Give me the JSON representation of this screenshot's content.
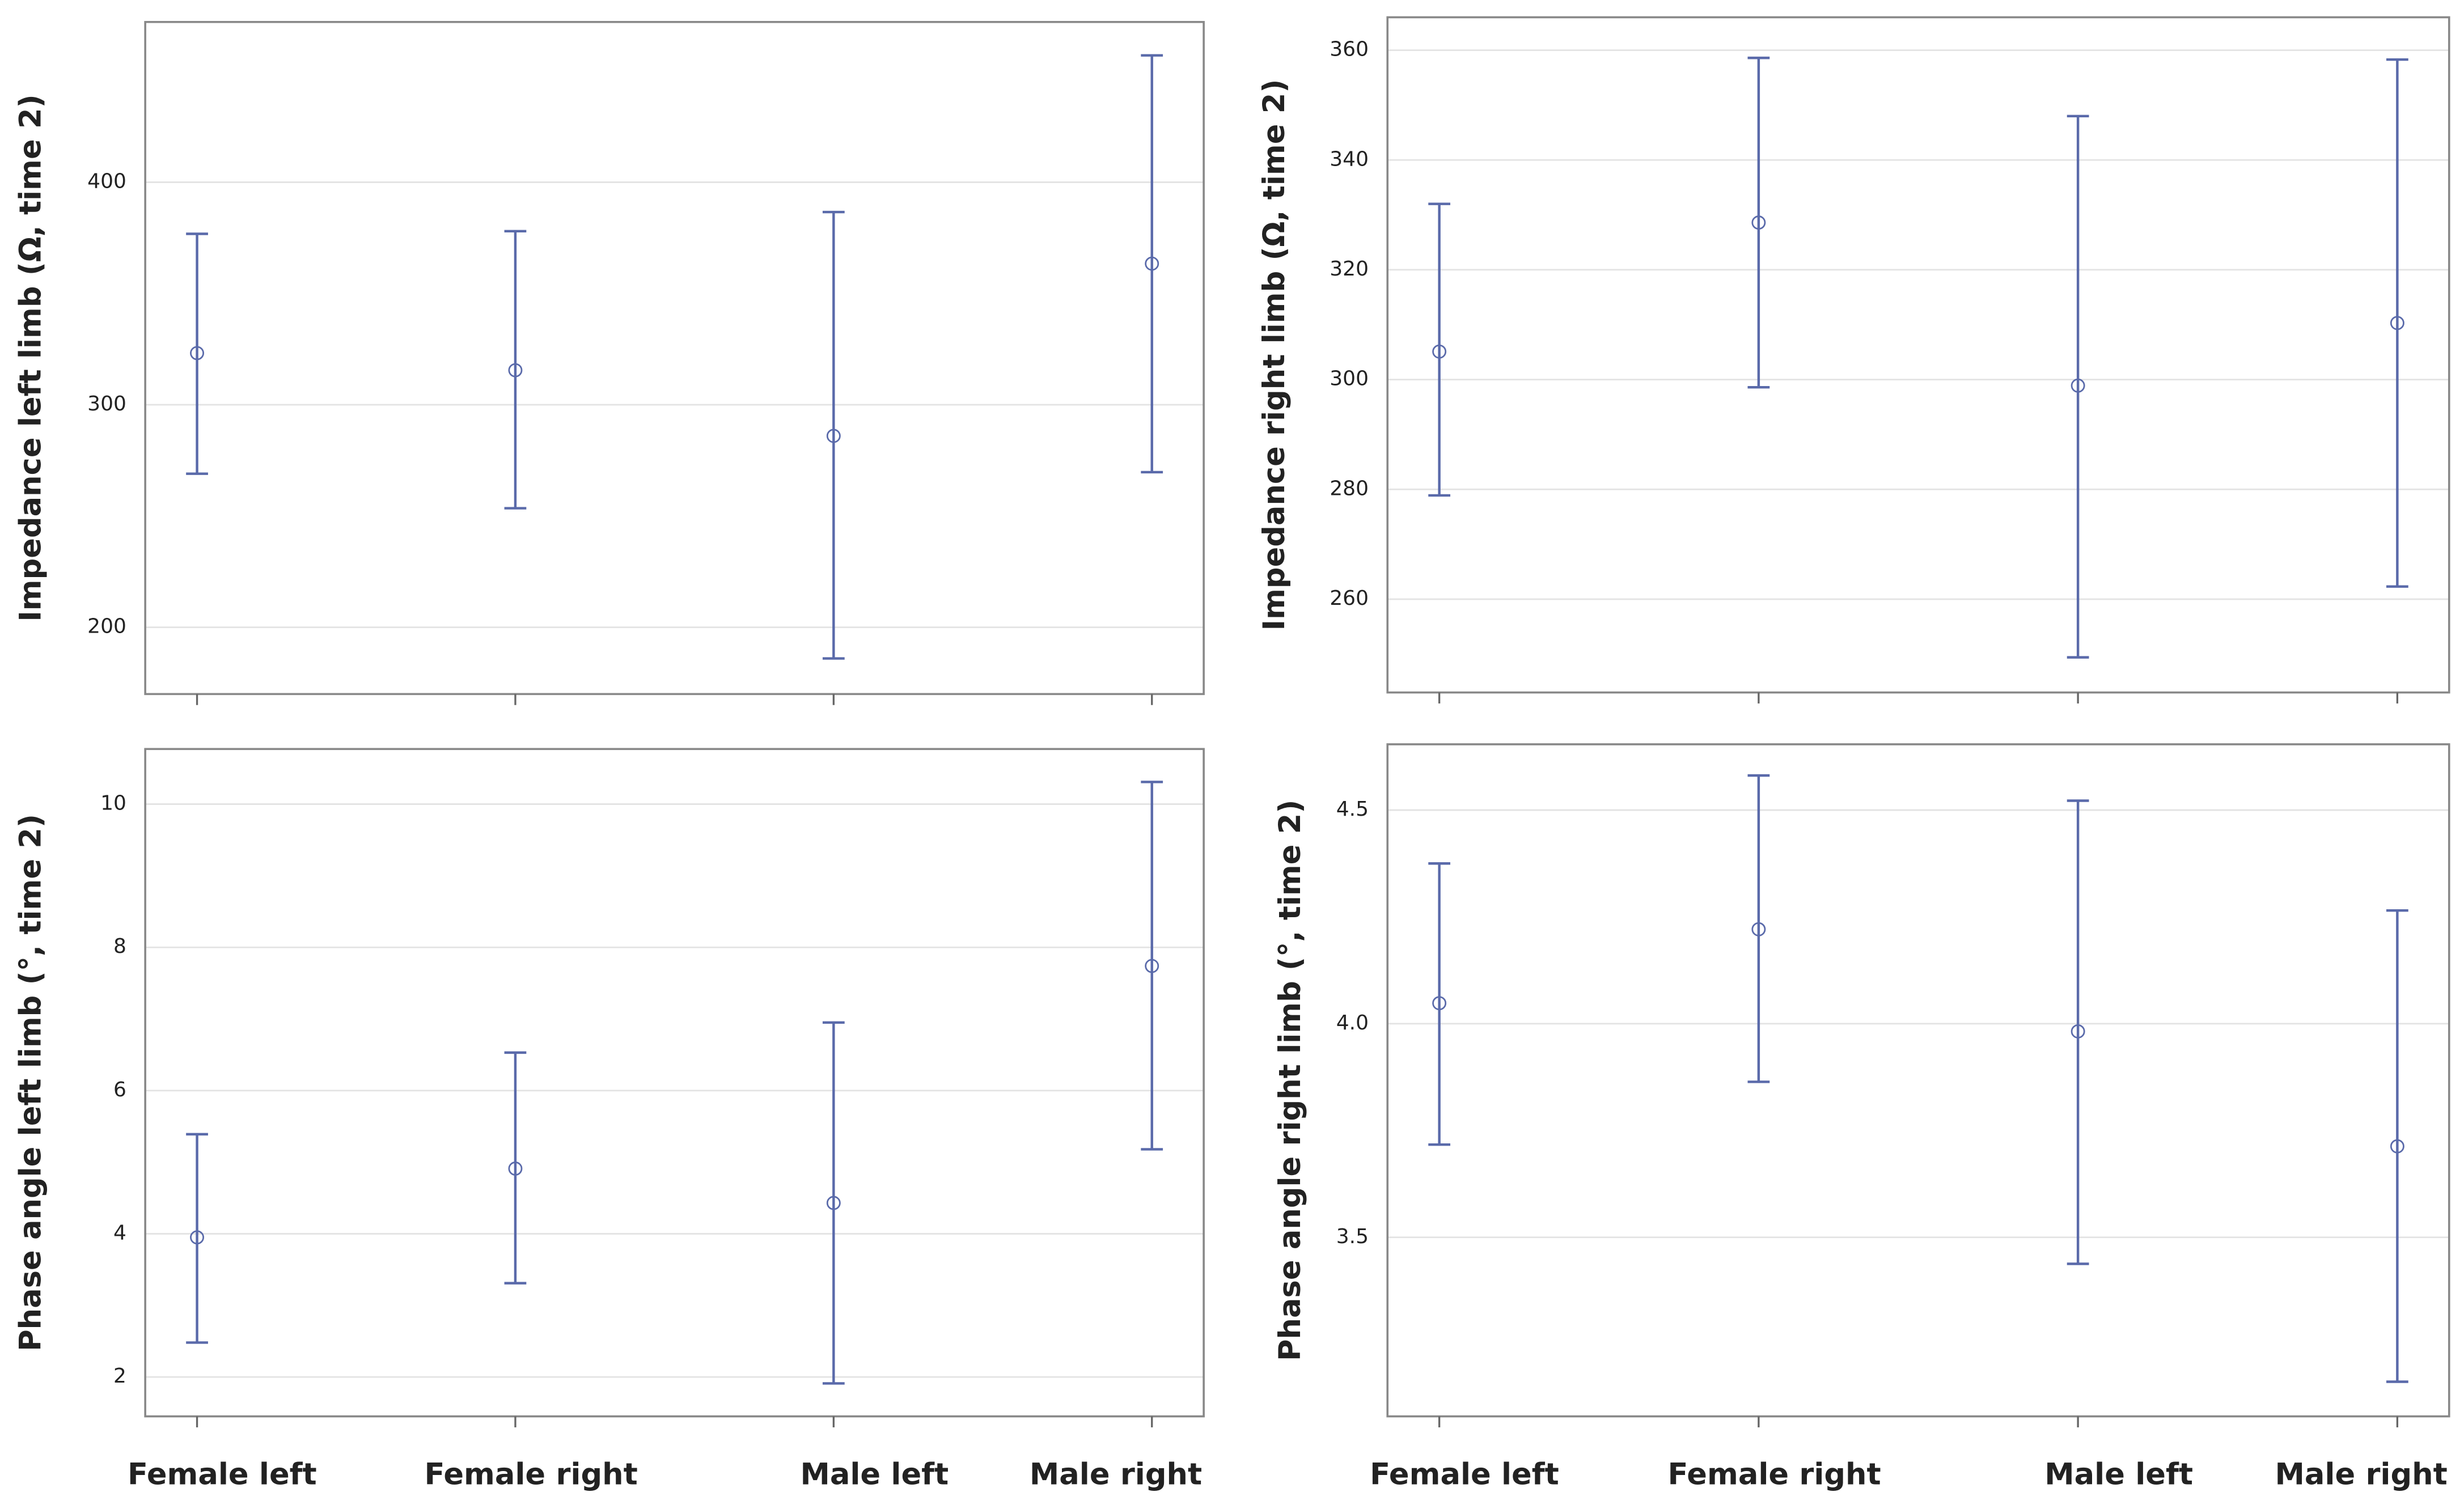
{
  "chart_data": [
    {
      "type": "errorbar",
      "y_label": "Impedance left limb (Ω, time 2)",
      "values": [
        323.2,
        315.5,
        286,
        363.4
      ],
      "lower": [
        269,
        253.5,
        186,
        269.7
      ],
      "upper": [
        376.8,
        378,
        386.6,
        457
      ],
      "ylim": [
        170,
        472
      ],
      "yticks": [
        200,
        300,
        400
      ],
      "grid": true,
      "color": "#5a6aaa"
    },
    {
      "type": "errorbar",
      "y_label": "Impedance right limb (Ω, time 2)",
      "values": [
        305.1,
        328.6,
        298.9,
        310.3
      ],
      "lower": [
        278.9,
        298.6,
        249.4,
        262.3
      ],
      "upper": [
        332,
        358.6,
        348,
        358.3
      ],
      "ylim": [
        243,
        366
      ],
      "yticks": [
        260,
        280,
        300,
        320,
        340,
        360
      ],
      "grid": true,
      "color": "#5a6aaa"
    },
    {
      "type": "errorbar",
      "y_label": "Phase angle left limb (°, time 2)",
      "categories": [
        "Female left",
        "Female right",
        "Male left",
        "Male right"
      ],
      "values": [
        3.95,
        4.91,
        4.43,
        7.74
      ],
      "lower": [
        2.48,
        3.31,
        1.91,
        5.18
      ],
      "upper": [
        5.39,
        6.53,
        6.95,
        10.31
      ],
      "ylim": [
        1.45,
        10.77
      ],
      "yticks": [
        2,
        4,
        6,
        8,
        10
      ],
      "grid": true,
      "color": "#5a6aaa"
    },
    {
      "type": "errorbar",
      "y_label": "Phase angle right limb (°, time 2)",
      "categories": [
        "Female left",
        "Female right",
        "Male left",
        "Male right"
      ],
      "values": [
        4.048,
        4.221,
        3.982,
        3.713
      ],
      "lower": [
        3.717,
        3.864,
        3.438,
        3.162
      ],
      "upper": [
        4.375,
        4.581,
        4.522,
        4.265
      ],
      "ylim": [
        3.081,
        4.654
      ],
      "yticks": [
        3.5,
        {
          "value": 4,
          "label": "4.0"
        },
        4.5
      ],
      "grid": true,
      "color": "#5a6aaa"
    }
  ]
}
